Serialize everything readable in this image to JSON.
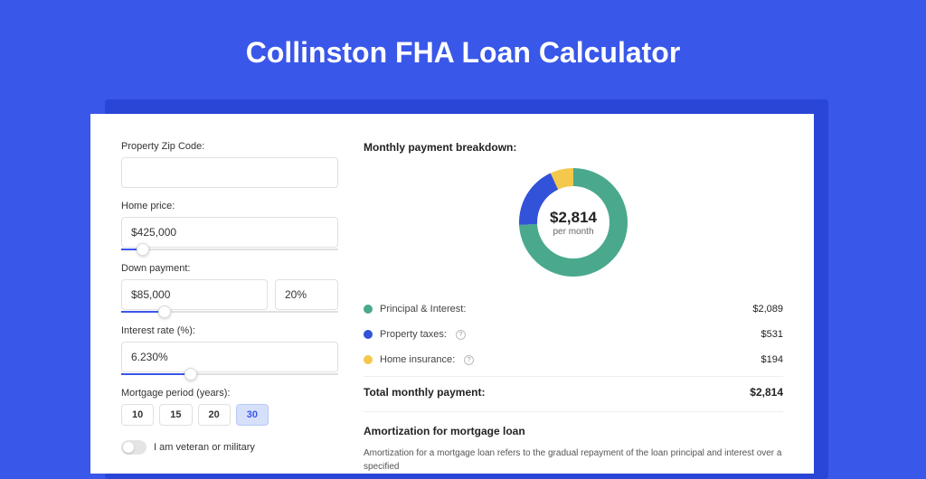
{
  "title": "Collinston FHA Loan Calculator",
  "colors": {
    "page_bg": "#3957e8",
    "shadow_bg": "#2a46d6",
    "card_bg": "#ffffff",
    "accent": "#3957e8",
    "text": "#333333",
    "muted": "#666666",
    "border": "#e0e0e0",
    "pill_active_bg": "#d6e0fb"
  },
  "form": {
    "zip": {
      "label": "Property Zip Code:",
      "value": ""
    },
    "home_price": {
      "label": "Home price:",
      "value": "$425,000",
      "slider_pct": 10
    },
    "down_payment": {
      "label": "Down payment:",
      "value": "$85,000",
      "pct_value": "20%",
      "slider_pct": 20
    },
    "interest": {
      "label": "Interest rate (%):",
      "value": "6.230%",
      "slider_pct": 32
    },
    "period": {
      "label": "Mortgage period (years):",
      "options": [
        "10",
        "15",
        "20",
        "30"
      ],
      "active_index": 3
    },
    "veteran": {
      "label": "I am veteran or military",
      "checked": false
    }
  },
  "breakdown": {
    "title": "Monthly payment breakdown:",
    "center_value": "$2,814",
    "center_sub": "per month",
    "chart": {
      "type": "donut",
      "ring_width": 20,
      "radius": 64,
      "slices": [
        {
          "key": "pi",
          "label": "Principal & Interest:",
          "amount": "$2,089",
          "value": 2089,
          "color": "#4aa98d",
          "has_info": false
        },
        {
          "key": "tax",
          "label": "Property taxes:",
          "amount": "$531",
          "value": 531,
          "color": "#3252d9",
          "has_info": true
        },
        {
          "key": "ins",
          "label": "Home insurance:",
          "amount": "$194",
          "value": 194,
          "color": "#f3c84b",
          "has_info": true
        }
      ]
    },
    "total": {
      "label": "Total monthly payment:",
      "amount": "$2,814"
    }
  },
  "amortization": {
    "title": "Amortization for mortgage loan",
    "body": "Amortization for a mortgage loan refers to the gradual repayment of the loan principal and interest over a specified"
  }
}
